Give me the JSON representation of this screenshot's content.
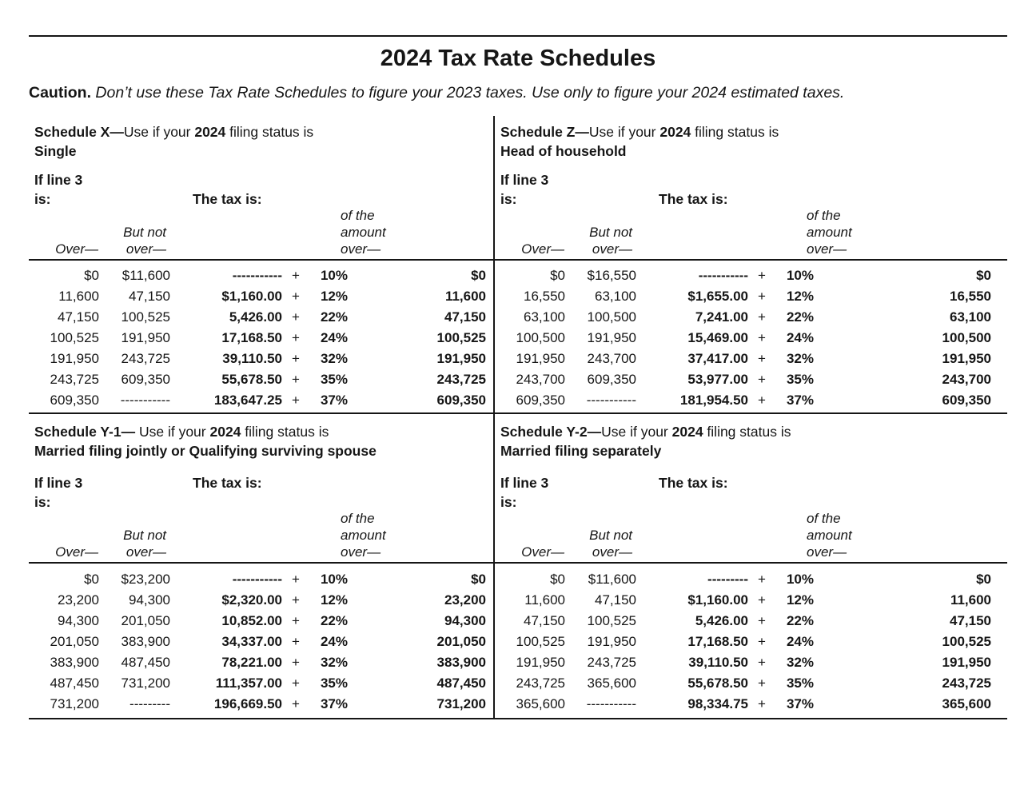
{
  "page": {
    "title": "2024 Tax Rate Schedules",
    "caution_label": "Caution.",
    "caution_text": "Don’t use these Tax Rate Schedules to figure your 2023 taxes. Use only to figure your 2024 estimated taxes."
  },
  "labels": {
    "if_line3_l1": "If line 3",
    "if_line3_l2": "is:",
    "tax_is": "The tax is:",
    "over": "Over—",
    "but_not_l1": "But not",
    "but_not_l2": "over—",
    "of_amount_l1": "of the",
    "of_amount_l2": "amount",
    "of_amount_l3": "over—",
    "plus": "+"
  },
  "schedules": [
    {
      "id": "x",
      "title_prefix": "Schedule X—",
      "title_mid1": "Use if your ",
      "title_year": "2024",
      "title_mid2": " filing status is",
      "status": "Single",
      "rows": [
        {
          "over": "$0",
          "but_not": "$11,600",
          "tax": "-----------",
          "rate": "10%",
          "of_amount": "$0"
        },
        {
          "over": "11,600",
          "but_not": "47,150",
          "tax": "$1,160.00",
          "rate": "12%",
          "of_amount": "11,600"
        },
        {
          "over": "47,150",
          "but_not": "100,525",
          "tax": "5,426.00",
          "rate": "22%",
          "of_amount": "47,150"
        },
        {
          "over": "100,525",
          "but_not": "191,950",
          "tax": "17,168.50",
          "rate": "24%",
          "of_amount": "100,525"
        },
        {
          "over": "191,950",
          "but_not": "243,725",
          "tax": "39,110.50",
          "rate": "32%",
          "of_amount": "191,950"
        },
        {
          "over": "243,725",
          "but_not": "609,350",
          "tax": "55,678.50",
          "rate": "35%",
          "of_amount": "243,725"
        },
        {
          "over": "609,350",
          "but_not": "-----------",
          "tax": "183,647.25",
          "rate": "37%",
          "of_amount": "609,350"
        }
      ]
    },
    {
      "id": "z",
      "title_prefix": "Schedule Z—",
      "title_mid1": "Use if your ",
      "title_year": "2024",
      "title_mid2": " filing status is",
      "status": "Head of household",
      "rows": [
        {
          "over": "$0",
          "but_not": "$16,550",
          "tax": "-----------",
          "rate": "10%",
          "of_amount": "$0"
        },
        {
          "over": "16,550",
          "but_not": "63,100",
          "tax": "$1,655.00",
          "rate": "12%",
          "of_amount": "16,550"
        },
        {
          "over": "63,100",
          "but_not": "100,500",
          "tax": "7,241.00",
          "rate": "22%",
          "of_amount": "63,100"
        },
        {
          "over": "100,500",
          "but_not": "191,950",
          "tax": "15,469.00",
          "rate": "24%",
          "of_amount": "100,500"
        },
        {
          "over": "191,950",
          "but_not": "243,700",
          "tax": "37,417.00",
          "rate": "32%",
          "of_amount": "191,950"
        },
        {
          "over": "243,700",
          "but_not": "609,350",
          "tax": "53,977.00",
          "rate": "35%",
          "of_amount": "243,700"
        },
        {
          "over": "609,350",
          "but_not": "-----------",
          "tax": "181,954.50",
          "rate": "37%",
          "of_amount": "609,350"
        }
      ]
    },
    {
      "id": "y1",
      "title_prefix": "Schedule Y-1— ",
      "title_mid1": "Use if your ",
      "title_year": "2024",
      "title_mid2": " filing status is",
      "status": "Married filing jointly or Qualifying surviving spouse",
      "rows": [
        {
          "over": "$0",
          "but_not": "$23,200",
          "tax": "-----------",
          "rate": "10%",
          "of_amount": "$0"
        },
        {
          "over": "23,200",
          "but_not": "94,300",
          "tax": "$2,320.00",
          "rate": "12%",
          "of_amount": "23,200"
        },
        {
          "over": "94,300",
          "but_not": "201,050",
          "tax": "10,852.00",
          "rate": "22%",
          "of_amount": "94,300"
        },
        {
          "over": "201,050",
          "but_not": "383,900",
          "tax": "34,337.00",
          "rate": "24%",
          "of_amount": "201,050"
        },
        {
          "over": "383,900",
          "but_not": "487,450",
          "tax": "78,221.00",
          "rate": "32%",
          "of_amount": "383,900"
        },
        {
          "over": "487,450",
          "but_not": "731,200",
          "tax": "111,357.00",
          "rate": "35%",
          "of_amount": "487,450"
        },
        {
          "over": "731,200",
          "but_not": "---------",
          "tax": "196,669.50",
          "rate": "37%",
          "of_amount": "731,200"
        }
      ]
    },
    {
      "id": "y2",
      "title_prefix": "Schedule Y-2—",
      "title_mid1": "Use if your ",
      "title_year": "2024",
      "title_mid2": " filing status is",
      "status": "Married filing separately",
      "rows": [
        {
          "over": "$0",
          "but_not": "$11,600",
          "tax": "---------",
          "rate": "10%",
          "of_amount": "$0"
        },
        {
          "over": "11,600",
          "but_not": "47,150",
          "tax": "$1,160.00",
          "rate": "12%",
          "of_amount": "11,600"
        },
        {
          "over": "47,150",
          "but_not": "100,525",
          "tax": "5,426.00",
          "rate": "22%",
          "of_amount": "47,150"
        },
        {
          "over": "100,525",
          "but_not": "191,950",
          "tax": "17,168.50",
          "rate": "24%",
          "of_amount": "100,525"
        },
        {
          "over": "191,950",
          "but_not": "243,725",
          "tax": "39,110.50",
          "rate": "32%",
          "of_amount": "191,950"
        },
        {
          "over": "243,725",
          "but_not": "365,600",
          "tax": "55,678.50",
          "rate": "35%",
          "of_amount": "243,725"
        },
        {
          "over": "365,600",
          "but_not": "-----------",
          "tax": "98,334.75",
          "rate": "37%",
          "of_amount": "365,600"
        }
      ]
    }
  ]
}
